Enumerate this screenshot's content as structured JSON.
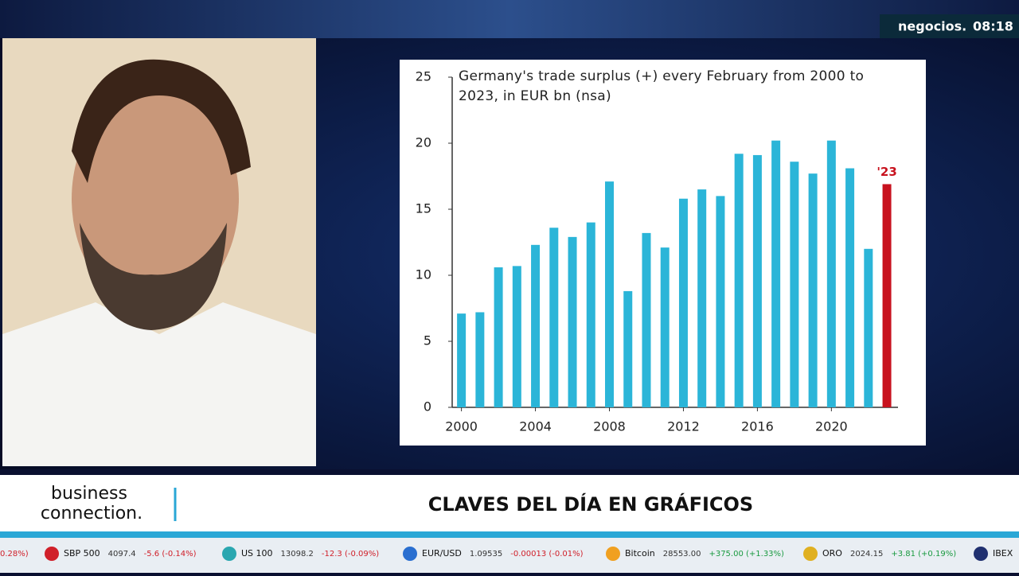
{
  "chart_data": {
    "type": "bar",
    "title": "Germany's trade surplus (+) every February from 2000 to 2023,  in EUR bn (nsa)",
    "x": [
      2000,
      2001,
      2002,
      2003,
      2004,
      2005,
      2006,
      2007,
      2008,
      2009,
      2010,
      2011,
      2012,
      2013,
      2014,
      2015,
      2016,
      2017,
      2018,
      2019,
      2020,
      2021,
      2022,
      2023
    ],
    "values": [
      7.1,
      7.2,
      10.6,
      10.7,
      12.3,
      13.6,
      12.9,
      14.0,
      17.1,
      8.8,
      13.2,
      12.1,
      15.8,
      16.5,
      16.0,
      19.2,
      19.1,
      20.2,
      18.6,
      17.7,
      20.2,
      18.1,
      12.0,
      16.9
    ],
    "colors": [
      "#2bb5d8",
      "#2bb5d8",
      "#2bb5d8",
      "#2bb5d8",
      "#2bb5d8",
      "#2bb5d8",
      "#2bb5d8",
      "#2bb5d8",
      "#2bb5d8",
      "#2bb5d8",
      "#2bb5d8",
      "#2bb5d8",
      "#2bb5d8",
      "#2bb5d8",
      "#2bb5d8",
      "#2bb5d8",
      "#2bb5d8",
      "#2bb5d8",
      "#2bb5d8",
      "#2bb5d8",
      "#2bb5d8",
      "#2bb5d8",
      "#2bb5d8",
      "#c8121e"
    ],
    "annotation": {
      "text": "'23",
      "x": 2023,
      "color": "#c8121e"
    },
    "xlim": [
      1999.5,
      2023.6
    ],
    "xticks": [
      2000,
      2004,
      2008,
      2012,
      2016,
      2020
    ],
    "ylim": [
      0,
      25
    ],
    "yticks": [
      0,
      5,
      10,
      15,
      20,
      25
    ],
    "grid": false
  },
  "header": {
    "brand": "negocios.",
    "time": "08:18"
  },
  "banner": {
    "logo_line1": "business",
    "logo_line2": "connection.",
    "headline": "CLAVES DEL DÍA EN GRÁFICOS"
  },
  "ticker": {
    "lead": "0.28%)",
    "items": [
      {
        "name": "SBP 500",
        "price": "4097.4",
        "change": "-5.6 (-0.14%)"
      },
      {
        "name": "US 100",
        "price": "13098.2",
        "change": "-12.3 (-0.09%)"
      },
      {
        "name": "EUR/USD",
        "price": "1.09535",
        "change": "-0.00013 (-0.01%)"
      },
      {
        "name": "Bitcoin",
        "price": "28553.00",
        "change": "+375.00 (+1.33%)"
      },
      {
        "name": "ORO",
        "price": "2024.15",
        "change": "+3.81 (+0.19%)"
      },
      {
        "name": "IBEX",
        "price": "",
        "change": ""
      }
    ]
  }
}
